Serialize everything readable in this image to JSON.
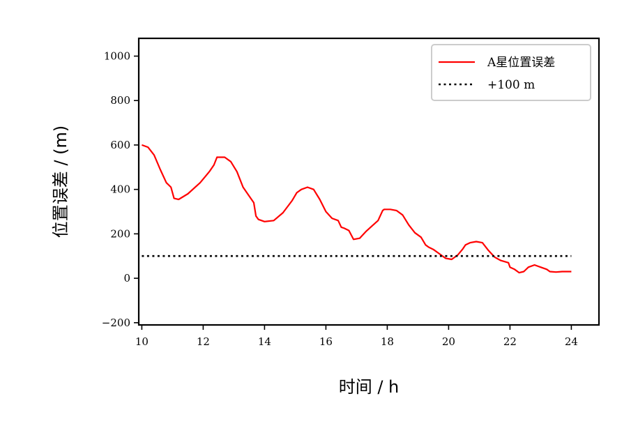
{
  "chart_data": {
    "type": "line",
    "xlabel": "时间 / h",
    "ylabel": "位置误差 / (m)",
    "xlim": [
      9.9,
      24.9
    ],
    "ylim": [
      -210,
      1080
    ],
    "xticks": [
      10,
      12,
      14,
      16,
      18,
      20,
      22,
      24
    ],
    "yticks": [
      -200,
      0,
      200,
      400,
      600,
      800,
      1000
    ],
    "grid": false,
    "legend": "top-right",
    "series": [
      {
        "name": "A星位置误差",
        "style": "solid",
        "color": "#ff0000",
        "x": [
          10.0,
          10.2,
          10.4,
          10.6,
          10.8,
          10.95,
          11.05,
          11.2,
          11.5,
          11.9,
          12.2,
          12.35,
          12.45,
          12.7,
          12.9,
          13.1,
          13.3,
          13.5,
          13.65,
          13.72,
          13.8,
          14.0,
          14.3,
          14.6,
          14.9,
          15.05,
          15.2,
          15.4,
          15.6,
          15.8,
          16.0,
          16.2,
          16.4,
          16.5,
          16.6,
          16.75,
          16.9,
          17.1,
          17.3,
          17.5,
          17.7,
          17.85,
          17.9,
          18.1,
          18.3,
          18.5,
          18.7,
          18.9,
          19.1,
          19.25,
          19.35,
          19.5,
          19.7,
          19.9,
          20.1,
          20.3,
          20.45,
          20.55,
          20.7,
          20.9,
          21.1,
          21.3,
          21.5,
          21.7,
          21.95,
          22.0,
          22.15,
          22.3,
          22.45,
          22.6,
          22.8,
          23.0,
          23.2,
          23.3,
          23.5,
          23.7,
          24.0
        ],
        "values": [
          600,
          590,
          555,
          490,
          430,
          410,
          360,
          355,
          380,
          430,
          480,
          510,
          545,
          545,
          525,
          480,
          410,
          370,
          340,
          280,
          265,
          255,
          260,
          295,
          350,
          385,
          400,
          410,
          400,
          355,
          300,
          270,
          260,
          230,
          225,
          215,
          175,
          180,
          210,
          235,
          260,
          305,
          310,
          310,
          305,
          285,
          240,
          205,
          185,
          150,
          140,
          130,
          110,
          90,
          85,
          105,
          130,
          150,
          160,
          165,
          160,
          125,
          95,
          80,
          70,
          50,
          40,
          25,
          30,
          50,
          60,
          50,
          40,
          30,
          28,
          30,
          30
        ]
      },
      {
        "name": "+100 m",
        "style": "dotted",
        "color": "#000000",
        "x": [
          10.0,
          24.0
        ],
        "values": [
          100,
          100
        ]
      }
    ]
  }
}
